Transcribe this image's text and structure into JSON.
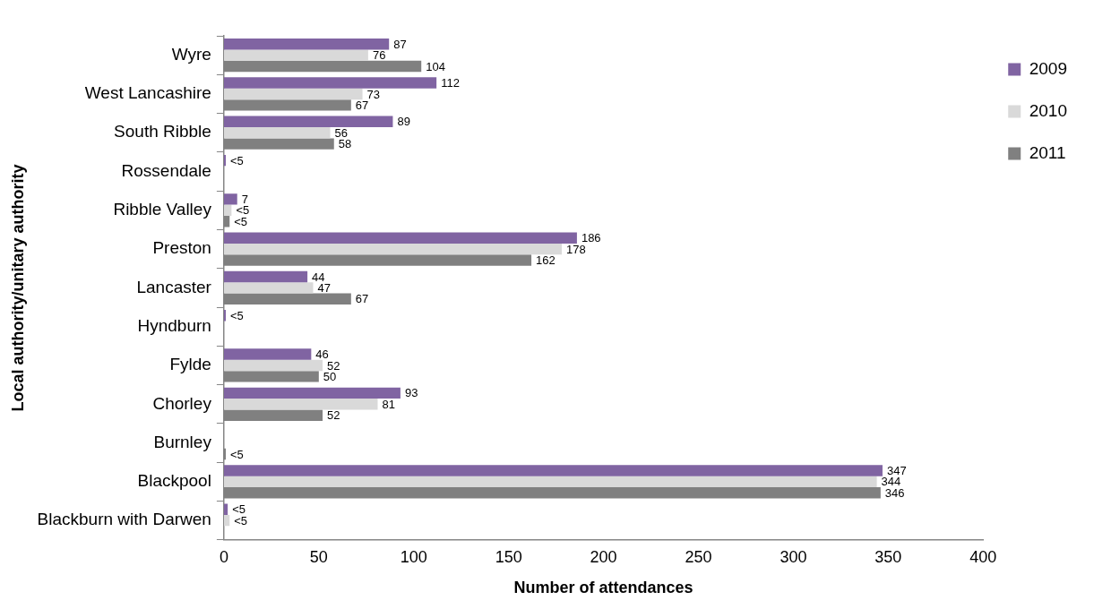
{
  "chart_data": {
    "type": "bar",
    "orientation": "horizontal",
    "xlabel": "Number of attendances",
    "ylabel": "Local authority/unitary authority",
    "categories": [
      "Wyre",
      "West Lancashire",
      "South Ribble",
      "Rossendale",
      "Ribble Valley",
      "Preston",
      "Lancaster",
      "Hyndburn",
      "Fylde",
      "Chorley",
      "Burnley",
      "Blackpool",
      "Blackburn with Darwen"
    ],
    "series": [
      {
        "name": "2009",
        "color": "#8064a2",
        "values": [
          87,
          112,
          89,
          1,
          7,
          186,
          44,
          1,
          46,
          93,
          null,
          347,
          2
        ],
        "value_labels": [
          "87",
          "112",
          "89",
          "<5",
          "7",
          "186",
          "44",
          "<5",
          "46",
          "93",
          null,
          "347",
          "<5"
        ]
      },
      {
        "name": "2010",
        "color": "#d9d9d9",
        "values": [
          76,
          73,
          56,
          null,
          4,
          178,
          47,
          null,
          52,
          81,
          null,
          344,
          3
        ],
        "value_labels": [
          "76",
          "73",
          "56",
          null,
          "<5",
          "178",
          "47",
          null,
          "52",
          "81",
          null,
          "344",
          "<5"
        ]
      },
      {
        "name": "2011",
        "color": "#808080",
        "values": [
          104,
          67,
          58,
          null,
          3,
          162,
          67,
          null,
          50,
          52,
          1,
          346,
          null
        ],
        "value_labels": [
          "104",
          "67",
          "58",
          null,
          "<5",
          "162",
          "67",
          null,
          "50",
          "52",
          "<5",
          "346",
          null
        ]
      }
    ],
    "xlim": [
      0,
      400
    ],
    "xticks": [
      0,
      50,
      100,
      150,
      200,
      250,
      300,
      350,
      400
    ],
    "grid": false,
    "legend": "right"
  }
}
